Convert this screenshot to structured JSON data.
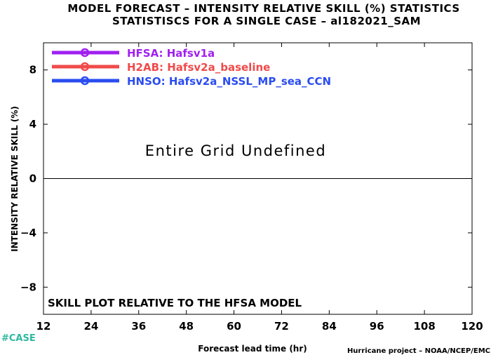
{
  "chart_data": {
    "type": "line",
    "title": "MODEL FORECAST – INTENSITY RELATIVE SKILL (%) STATISTICS",
    "subtitle": "STATISTISCS FOR A SINGLE CASE – al182021_SAM",
    "xlabel": "Forecast lead time (hr)",
    "ylabel": "INTENSITY RELATIVE SKILL (%)",
    "xlim": [
      12,
      120
    ],
    "ylim": [
      -10,
      10
    ],
    "x_ticks": [
      12,
      24,
      36,
      48,
      60,
      72,
      84,
      96,
      108,
      120
    ],
    "y_ticks": [
      -8,
      -4,
      0,
      4,
      8
    ],
    "y_tick_labels": [
      "−8",
      "−4",
      "0",
      "4",
      "8"
    ],
    "zero_line": 0,
    "grid": false,
    "legend_position": "top-left",
    "series": [
      {
        "name": "HFSA: Hafsv1a",
        "color": "#a020f0",
        "values": []
      },
      {
        "name": "H2AB: Hafsv2a_baseline",
        "color": "#f04a4a",
        "values": []
      },
      {
        "name": "HNSO: Hafsv2a_NSSL_MP_sea_CCN",
        "color": "#2a4cf0",
        "values": []
      }
    ],
    "annotations": {
      "undefined": "Entire Grid Undefined",
      "note": "SKILL PLOT RELATIVE TO THE HFSA MODEL"
    }
  },
  "footer": {
    "case_tag": "#CASE",
    "credit": "Hurricane project – NOAA/NCEP/EMC"
  },
  "colors": {
    "case_tag": "#2fb8a0",
    "axis": "#000000"
  }
}
